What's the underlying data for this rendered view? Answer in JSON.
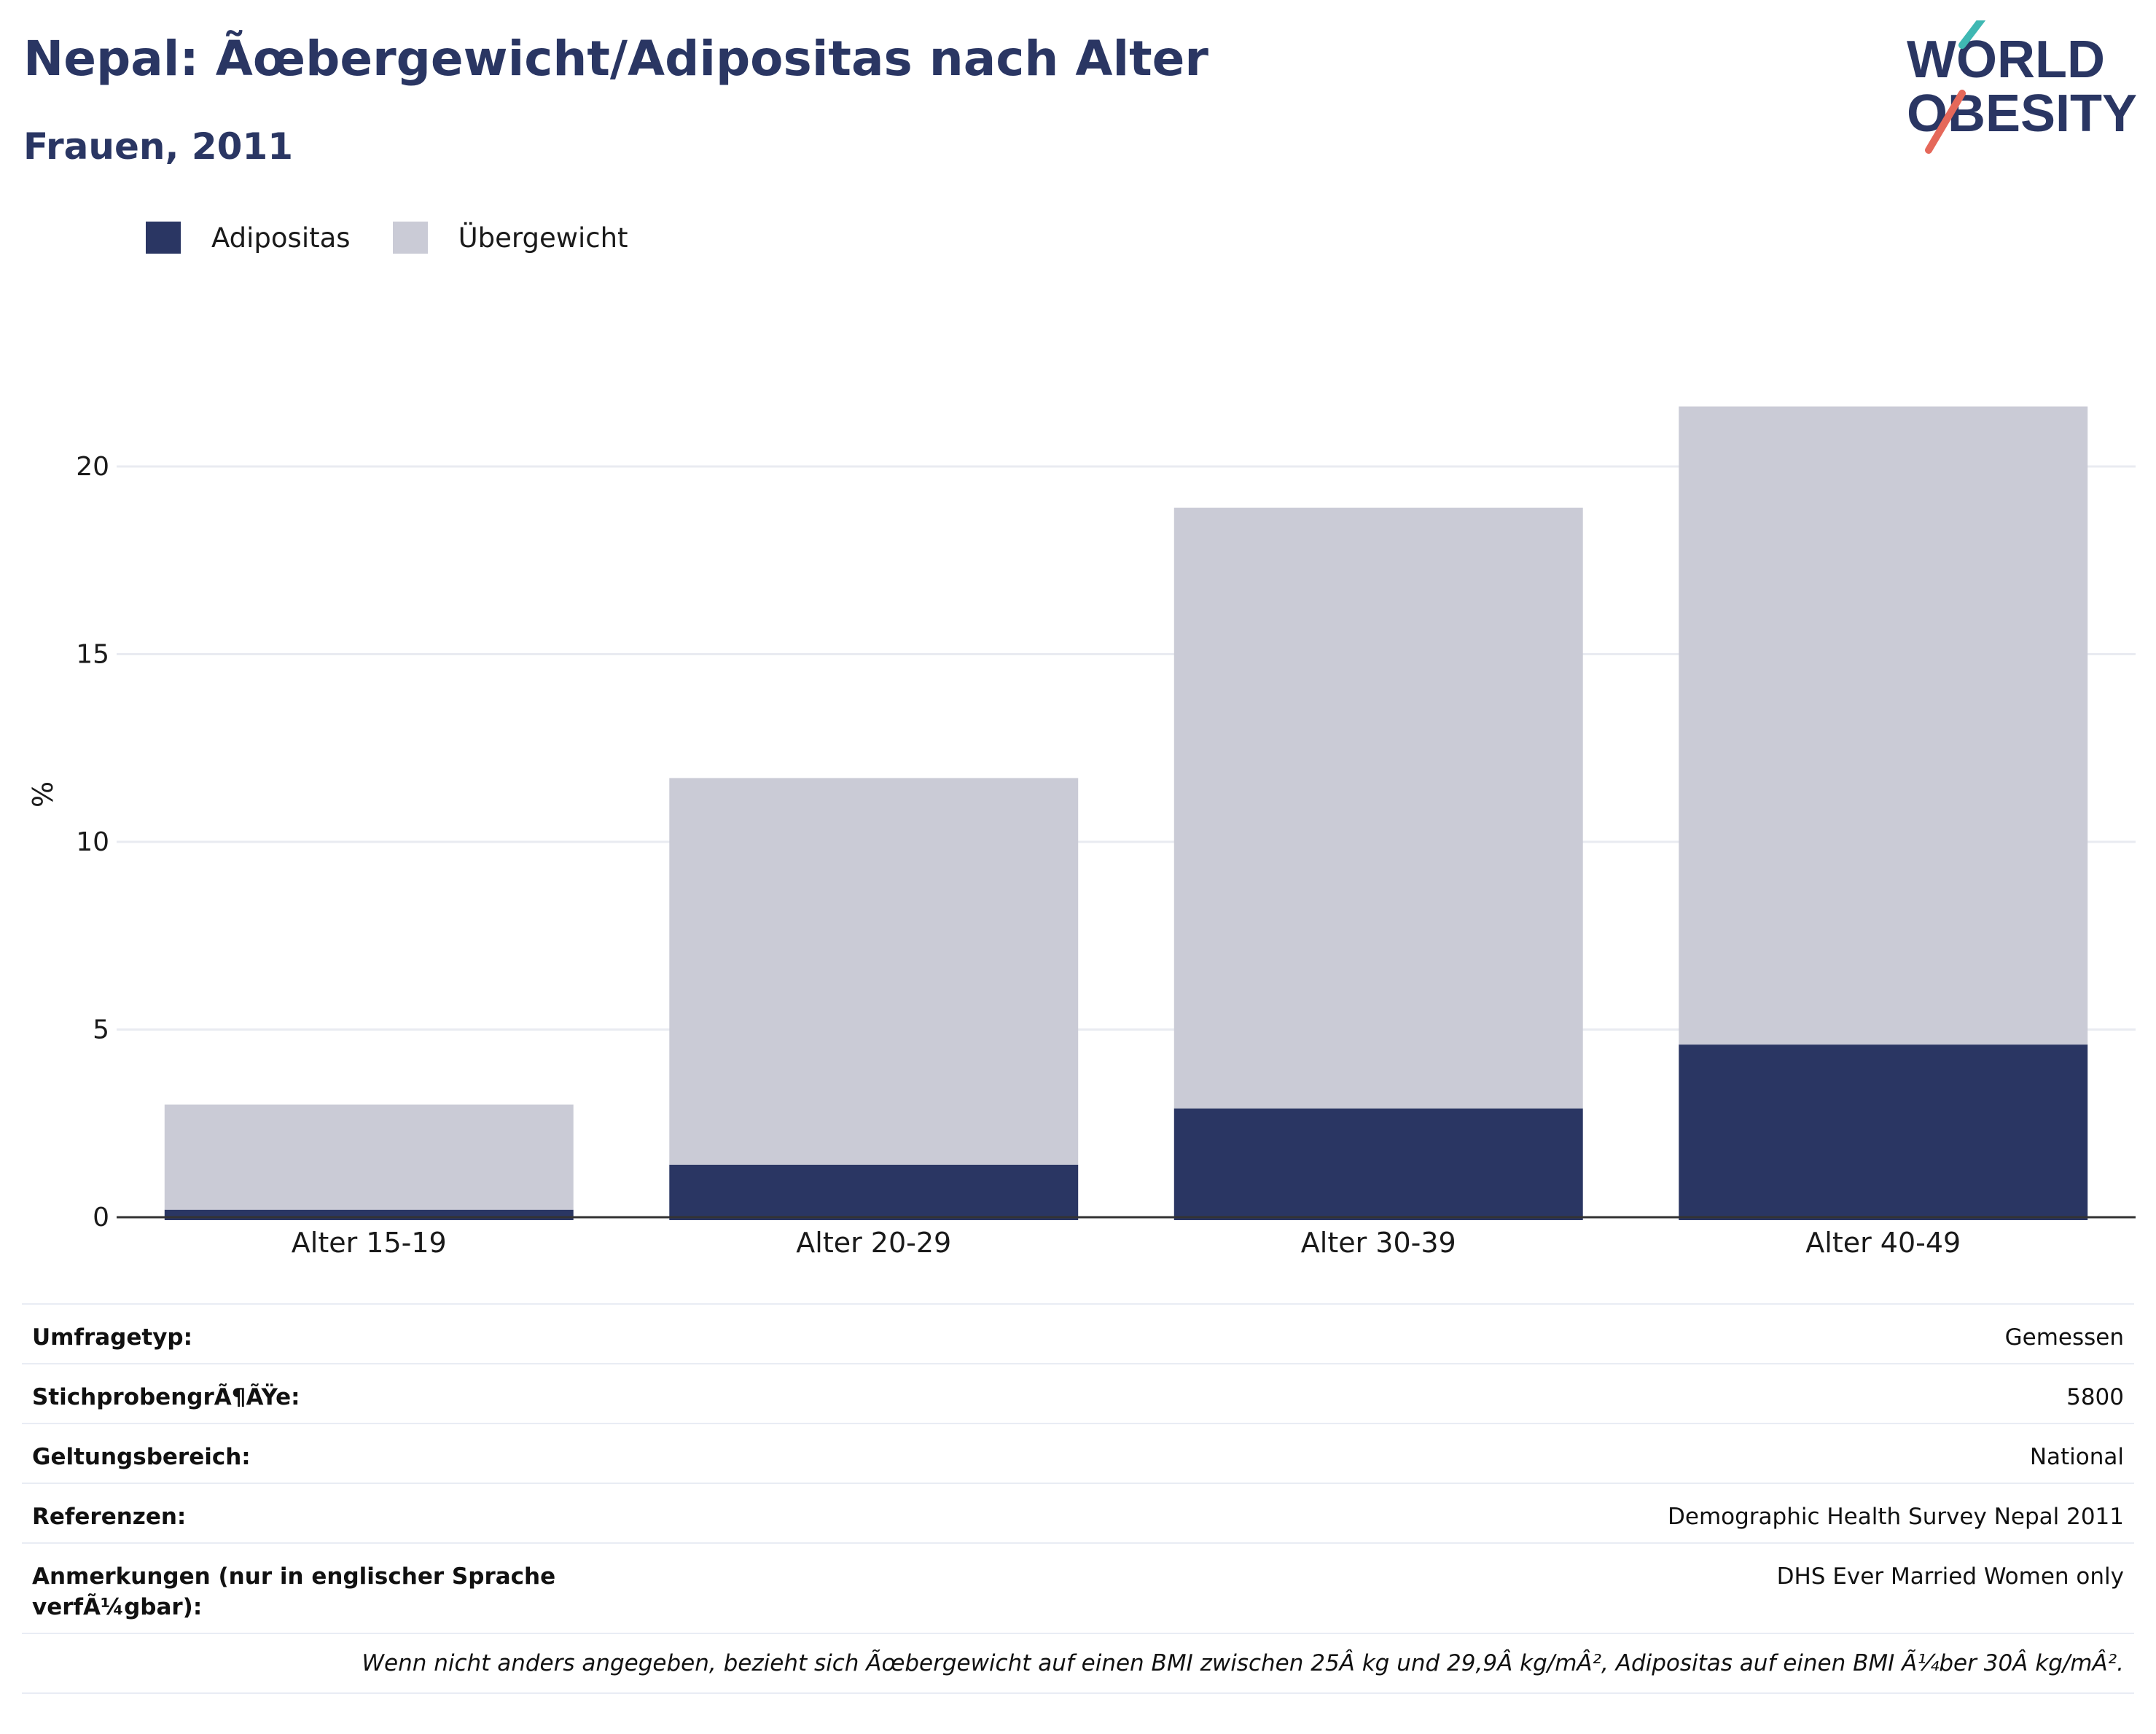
{
  "header": {
    "title": "Nepal: Ãœbergewicht/Adipositas nach Alter",
    "subtitle": "Frauen, 2011"
  },
  "logo": {
    "line1": "WORLD",
    "line2": "OBESITY"
  },
  "colors": {
    "obesity": "#2a3663",
    "overweight": "#cacbd6",
    "text": "#2a3663"
  },
  "chart_data": {
    "type": "bar",
    "stacked": true,
    "categories": [
      "Alter 15-19",
      "Alter 20-29",
      "Alter 30-39",
      "Alter 40-49"
    ],
    "series": [
      {
        "name": "Adipositas",
        "values": [
          0.2,
          1.4,
          2.9,
          4.6
        ]
      },
      {
        "name": "Übergewicht",
        "values": [
          2.8,
          10.3,
          16.0,
          17.0
        ]
      }
    ],
    "ylabel": "%",
    "ylim": [
      0,
      22
    ],
    "yticks": [
      0,
      5,
      10,
      15,
      20
    ],
    "grid": true,
    "legend_position": "top-left"
  },
  "table": {
    "rows": [
      {
        "key": "Umfragetyp:",
        "value": "Gemessen"
      },
      {
        "key": "StichprobengrÃ¶ÃŸe:",
        "value": "5800"
      },
      {
        "key": "Geltungsbereich:",
        "value": "National"
      },
      {
        "key": "Referenzen:",
        "value": "Demographic Health Survey Nepal 2011"
      },
      {
        "key": "Anmerkungen (nur in englischer Sprache verfÃ¼gbar):",
        "value": "DHS Ever Married Women only"
      }
    ],
    "footnote": "Wenn nicht anders angegeben, bezieht sich Ãœbergewicht auf einen BMI zwischen 25Â kg und 29,9Â kg/mÂ², Adipositas auf einen BMI Ã¼ber 30Â kg/mÂ²."
  }
}
